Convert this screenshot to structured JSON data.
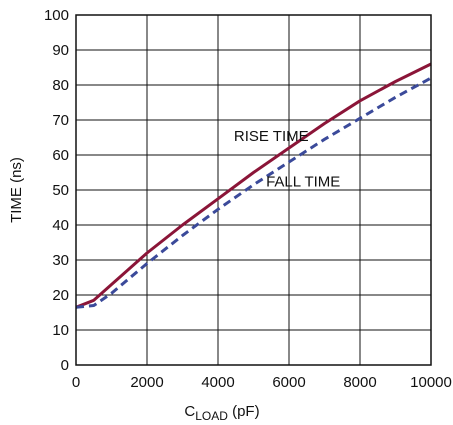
{
  "chart_data": {
    "type": "line",
    "xlabel": "C",
    "xlabel_sub": "LOAD",
    "xlabel_unit": " (pF)",
    "ylabel": "TIME (ns)",
    "xlim": [
      0,
      10000
    ],
    "ylim": [
      0,
      100
    ],
    "x_ticks": [
      0,
      2000,
      4000,
      6000,
      8000,
      10000
    ],
    "y_ticks": [
      0,
      10,
      20,
      30,
      40,
      50,
      60,
      70,
      80,
      90,
      100
    ],
    "x_tick_labels": [
      "0",
      "2000",
      "4000",
      "6000",
      "8000",
      "10000"
    ],
    "y_tick_labels": [
      "0",
      "10",
      "20",
      "30",
      "40",
      "50",
      "60",
      "70",
      "80",
      "90",
      "100"
    ],
    "grid": true,
    "series": [
      {
        "name": "RISE TIME",
        "color": "#8b1538",
        "style": "solid",
        "x": [
          0,
          500,
          1000,
          2000,
          3000,
          4000,
          5000,
          6000,
          7000,
          8000,
          9000,
          10000
        ],
        "y": [
          16.5,
          18.5,
          23,
          32,
          40,
          47.5,
          55,
          62,
          69,
          75.5,
          81,
          86
        ]
      },
      {
        "name": "FALL TIME",
        "color": "#3b4a9a",
        "style": "dashed",
        "x": [
          0,
          500,
          1000,
          2000,
          3000,
          4000,
          5000,
          6000,
          7000,
          8000,
          9000,
          10000
        ],
        "y": [
          16.5,
          17,
          20.5,
          29,
          37,
          44.5,
          51.5,
          58,
          64.5,
          70.5,
          76.5,
          82
        ]
      }
    ],
    "annotations": [
      {
        "text": "RISE TIME",
        "x": 5500,
        "y": 64
      },
      {
        "text": "FALL TIME",
        "x": 6400,
        "y": 51
      }
    ]
  }
}
